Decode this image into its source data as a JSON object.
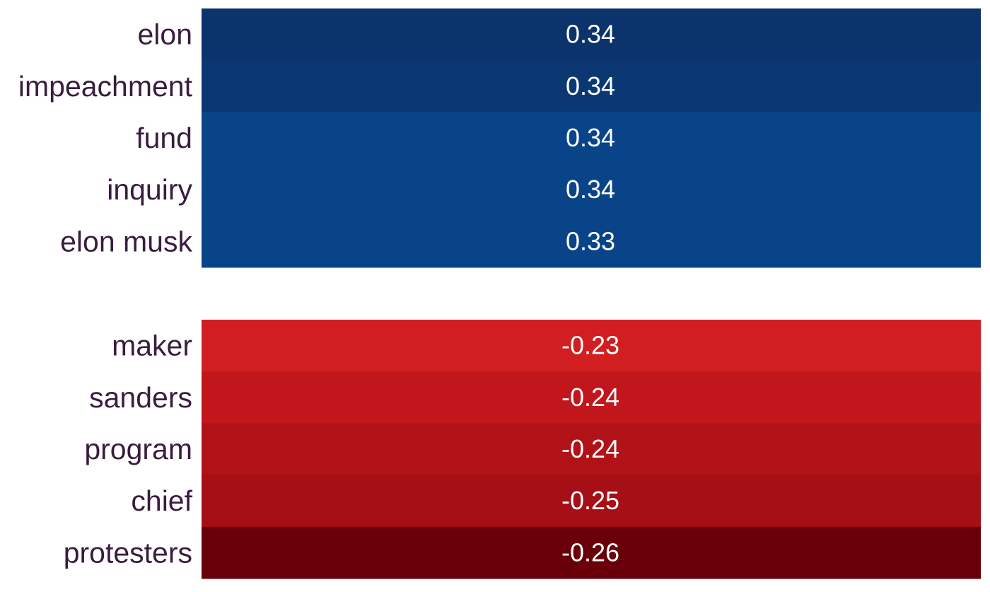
{
  "chart_data": [
    {
      "type": "heatmap",
      "title": "",
      "xlabel": "",
      "ylabel": "",
      "grid": false,
      "legend": "none",
      "categories": [
        "elon",
        "impeachment",
        "fund",
        "inquiry",
        "elon musk"
      ],
      "values": [
        0.34,
        0.34,
        0.34,
        0.34,
        0.33
      ],
      "value_labels": [
        "0.34",
        "0.34",
        "0.34",
        "0.34",
        "0.33"
      ],
      "colors": [
        "#0b336c",
        "#0b3872",
        "#0a4488",
        "#0a4488",
        "#094489"
      ]
    },
    {
      "type": "heatmap",
      "title": "",
      "xlabel": "",
      "ylabel": "",
      "grid": false,
      "legend": "none",
      "categories": [
        "maker",
        "sanders",
        "program",
        "chief",
        "protesters"
      ],
      "values": [
        -0.23,
        -0.24,
        -0.24,
        -0.25,
        -0.26
      ],
      "value_labels": [
        "-0.23",
        "-0.24",
        "-0.24",
        "-0.25",
        "-0.26"
      ],
      "colors": [
        "#d11f21",
        "#c1161c",
        "#b11218",
        "#a50f15",
        "#690009"
      ]
    }
  ],
  "style": {
    "label_color": "#3a1c3f",
    "value_label_color": "#ffffff"
  }
}
